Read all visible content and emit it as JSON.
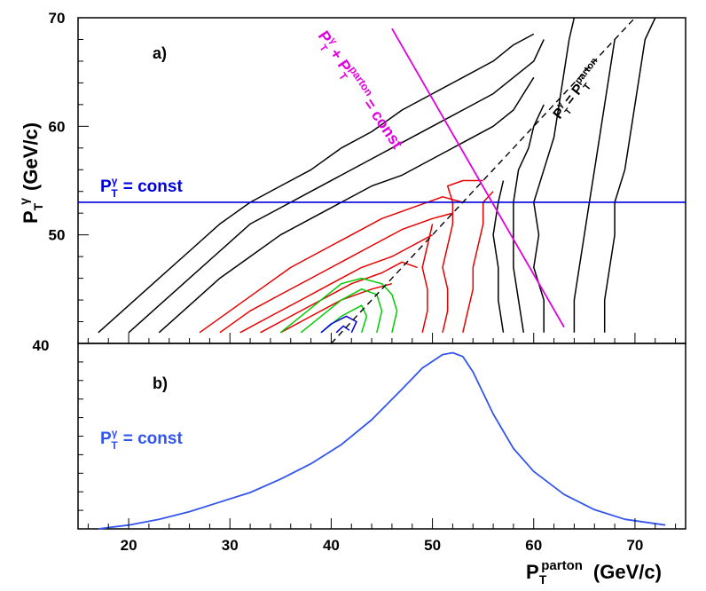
{
  "chart_data": [
    {
      "type": "contour",
      "panel_label": "a)",
      "xlabel_main": "P",
      "xlabel_sub": "T",
      "xlabel_sup": "parton",
      "xlabel_unit": "(GeV/c)",
      "ylabel_main": "P",
      "ylabel_sub": "T",
      "ylabel_sup": "γ",
      "ylabel_unit": "(GeV/c)",
      "xlim": [
        15,
        75
      ],
      "ylim": [
        40,
        70
      ],
      "xticks": [
        20,
        30,
        40,
        50,
        60,
        70
      ],
      "yticks": [
        40,
        50,
        60,
        70
      ],
      "colors": {
        "outer": "#000000",
        "middle": "#e60000",
        "inner": "#00cc00",
        "core": "#0000dd",
        "const_line": "#0000dd",
        "sum_line": "#e000e0",
        "diag": "#000000"
      },
      "annotations": {
        "pt_gamma_const": {
          "main": "P",
          "sup": "γ",
          "sub": "T",
          "rest": "= const",
          "color": "#0000dd"
        },
        "pt_sum_const": {
          "main": "P",
          "sup": "γ",
          "sub": "T",
          "plus": "+ P",
          "sup2": "parton",
          "sub2": "T",
          "rest": "= const",
          "color": "#e000e0"
        },
        "pt_equal": {
          "main": "P",
          "sup": "γ",
          "sub": "T",
          "eq": "= P",
          "sup2": "parton",
          "sub2": "T",
          "color": "#000000"
        }
      },
      "lines": {
        "pt_gamma_const": {
          "y": 53,
          "x": [
            15,
            75
          ]
        },
        "pt_sum_const": {
          "x": [
            46,
            63
          ],
          "y": [
            69,
            41.5
          ]
        },
        "diagonal": {
          "x": [
            40,
            70
          ],
          "y": [
            40,
            70
          ]
        }
      },
      "contours": {
        "outer": [
          [
            [
              17,
              41
            ],
            [
              20,
              43.5
            ],
            [
              23,
              46
            ],
            [
              26,
              48.5
            ],
            [
              29,
              51
            ],
            [
              32,
              53
            ],
            [
              35,
              54.5
            ],
            [
              38,
              56
            ],
            [
              41,
              58
            ],
            [
              44,
              59.5
            ],
            [
              47,
              61.5
            ],
            [
              50,
              63
            ],
            [
              53,
              64.5
            ],
            [
              56,
              66
            ],
            [
              58,
              67.5
            ],
            [
              60,
              68.5
            ]
          ],
          [
            [
              20,
              41
            ],
            [
              23,
              43.5
            ],
            [
              26,
              46
            ],
            [
              29,
              48.5
            ],
            [
              32,
              51
            ],
            [
              35,
              52.5
            ],
            [
              38,
              54
            ],
            [
              41,
              55.5
            ],
            [
              44,
              57
            ],
            [
              47,
              58.5
            ],
            [
              50,
              60
            ],
            [
              53,
              61.5
            ],
            [
              56,
              63
            ],
            [
              58,
              64.5
            ],
            [
              60,
              66
            ],
            [
              61,
              68
            ]
          ],
          [
            [
              23,
              41
            ],
            [
              26,
              43.5
            ],
            [
              29,
              46
            ],
            [
              32,
              48
            ],
            [
              35,
              50
            ],
            [
              38,
              51.5
            ],
            [
              41,
              53
            ],
            [
              44,
              54.5
            ],
            [
              47,
              55.5
            ],
            [
              50,
              57
            ],
            [
              53,
              58.5
            ],
            [
              56,
              60
            ],
            [
              58,
              61.5
            ],
            [
              59,
              63
            ],
            [
              60,
              64.5
            ]
          ],
          [
            [
              61,
              41
            ],
            [
              61,
              44
            ],
            [
              60,
              47
            ],
            [
              60.5,
              50
            ],
            [
              60,
              53
            ],
            [
              61,
              56
            ],
            [
              62,
              59
            ],
            [
              62.5,
              62
            ],
            [
              63,
              65
            ],
            [
              63.5,
              68
            ],
            [
              64,
              70
            ]
          ],
          [
            [
              59,
              41
            ],
            [
              58.5,
              44
            ],
            [
              58,
              47
            ],
            [
              58,
              50
            ],
            [
              58,
              53
            ],
            [
              58.5,
              56
            ],
            [
              59.5,
              58
            ],
            [
              60,
              60
            ],
            [
              61,
              62
            ]
          ],
          [
            [
              57,
              41
            ],
            [
              56.5,
              44
            ],
            [
              56.5,
              47
            ],
            [
              56,
              50
            ],
            [
              56.5,
              53
            ],
            [
              57,
              55
            ]
          ],
          [
            [
              67,
              41
            ],
            [
              67,
              44
            ],
            [
              67.5,
              47
            ],
            [
              68,
              50
            ],
            [
              68,
              53
            ],
            [
              69,
              56
            ],
            [
              69.5,
              59
            ],
            [
              70,
              62
            ],
            [
              70.5,
              65
            ],
            [
              71,
              68
            ],
            [
              72,
              70
            ]
          ],
          [
            [
              64,
              41
            ],
            [
              64,
              44
            ],
            [
              64.5,
              47
            ],
            [
              65,
              50
            ],
            [
              65.5,
              53
            ],
            [
              66,
              56
            ],
            [
              66.5,
              59
            ],
            [
              67,
              62
            ],
            [
              67.5,
              65
            ],
            [
              68,
              68
            ]
          ]
        ],
        "middle": [
          [
            [
              27,
              41
            ],
            [
              30,
              43
            ],
            [
              33,
              45
            ],
            [
              36,
              47
            ],
            [
              39,
              48.5
            ],
            [
              42,
              50
            ],
            [
              45,
              51.5
            ],
            [
              48,
              52.5
            ],
            [
              51,
              53.5
            ],
            [
              53,
              53
            ]
          ],
          [
            [
              29,
              41
            ],
            [
              32,
              43
            ],
            [
              35,
              44.5
            ],
            [
              38,
              46
            ],
            [
              41,
              47.5
            ],
            [
              44,
              49
            ],
            [
              47,
              50.5
            ],
            [
              50,
              51.5
            ],
            [
              52,
              52
            ]
          ],
          [
            [
              31,
              41
            ],
            [
              34,
              42.5
            ],
            [
              37,
              44
            ],
            [
              40,
              45.5
            ],
            [
              43,
              47
            ],
            [
              46,
              48
            ],
            [
              48,
              49
            ],
            [
              50,
              50
            ]
          ],
          [
            [
              33,
              41
            ],
            [
              36,
              42.5
            ],
            [
              39,
              44
            ],
            [
              42,
              45.5
            ],
            [
              45,
              46.5
            ],
            [
              47,
              47.5
            ],
            [
              48.5,
              47
            ]
          ],
          [
            [
              35,
              41
            ],
            [
              38,
              42.5
            ],
            [
              41,
              44
            ],
            [
              44,
              45
            ],
            [
              46,
              45.5
            ]
          ],
          [
            [
              49,
              41
            ],
            [
              49.5,
              43
            ],
            [
              49.5,
              45
            ],
            [
              49,
              47
            ],
            [
              49.5,
              49
            ],
            [
              50,
              51
            ]
          ],
          [
            [
              51,
              41
            ],
            [
              51.5,
              43
            ],
            [
              51.5,
              45
            ],
            [
              51,
              47
            ],
            [
              51.5,
              49
            ],
            [
              52,
              51
            ],
            [
              52,
              53
            ],
            [
              51.5,
              54.5
            ],
            [
              53,
              55
            ],
            [
              55,
              55
            ]
          ],
          [
            [
              53,
              41
            ],
            [
              53.5,
              43
            ],
            [
              54,
              45
            ],
            [
              54,
              47
            ],
            [
              54.5,
              49
            ],
            [
              55,
              51
            ],
            [
              55,
              53
            ],
            [
              56,
              54
            ]
          ]
        ],
        "inner": [
          [
            [
              35,
              41
            ],
            [
              37,
              42.5
            ],
            [
              39,
              44
            ],
            [
              41,
              45.5
            ],
            [
              43,
              46
            ],
            [
              45,
              45.5
            ],
            [
              46,
              44.5
            ],
            [
              46.5,
              43
            ],
            [
              46,
              41
            ]
          ],
          [
            [
              37,
              41
            ],
            [
              39,
              42.5
            ],
            [
              41,
              44
            ],
            [
              43,
              45
            ],
            [
              44.5,
              44.5
            ],
            [
              45,
              43
            ],
            [
              44.5,
              41
            ]
          ],
          [
            [
              39,
              41
            ],
            [
              41,
              42.5
            ],
            [
              43,
              43.5
            ],
            [
              43.5,
              42.5
            ],
            [
              43,
              41
            ]
          ]
        ],
        "core": [
          [
            [
              39,
              41
            ],
            [
              40,
              41.8
            ],
            [
              41.5,
              42.5
            ],
            [
              42.5,
              42
            ],
            [
              42,
              41
            ]
          ],
          [
            [
              40.5,
              41
            ],
            [
              41.2,
              41.6
            ],
            [
              41.8,
              41.2
            ]
          ]
        ]
      }
    },
    {
      "type": "line",
      "panel_label": "b)",
      "ytick_top": "40",
      "xlim": [
        15,
        75
      ],
      "series": [
        {
          "color": "#3355ee",
          "x": [
            17,
            20,
            23,
            26,
            29,
            32,
            35,
            38,
            41,
            44,
            47,
            49,
            51,
            52,
            53,
            54,
            56,
            58,
            60,
            63,
            66,
            69,
            73
          ],
          "y": [
            0.0,
            0.02,
            0.05,
            0.09,
            0.14,
            0.19,
            0.26,
            0.34,
            0.44,
            0.57,
            0.73,
            0.84,
            0.91,
            0.92,
            0.9,
            0.82,
            0.6,
            0.42,
            0.3,
            0.18,
            0.1,
            0.05,
            0.02
          ]
        }
      ]
    }
  ]
}
